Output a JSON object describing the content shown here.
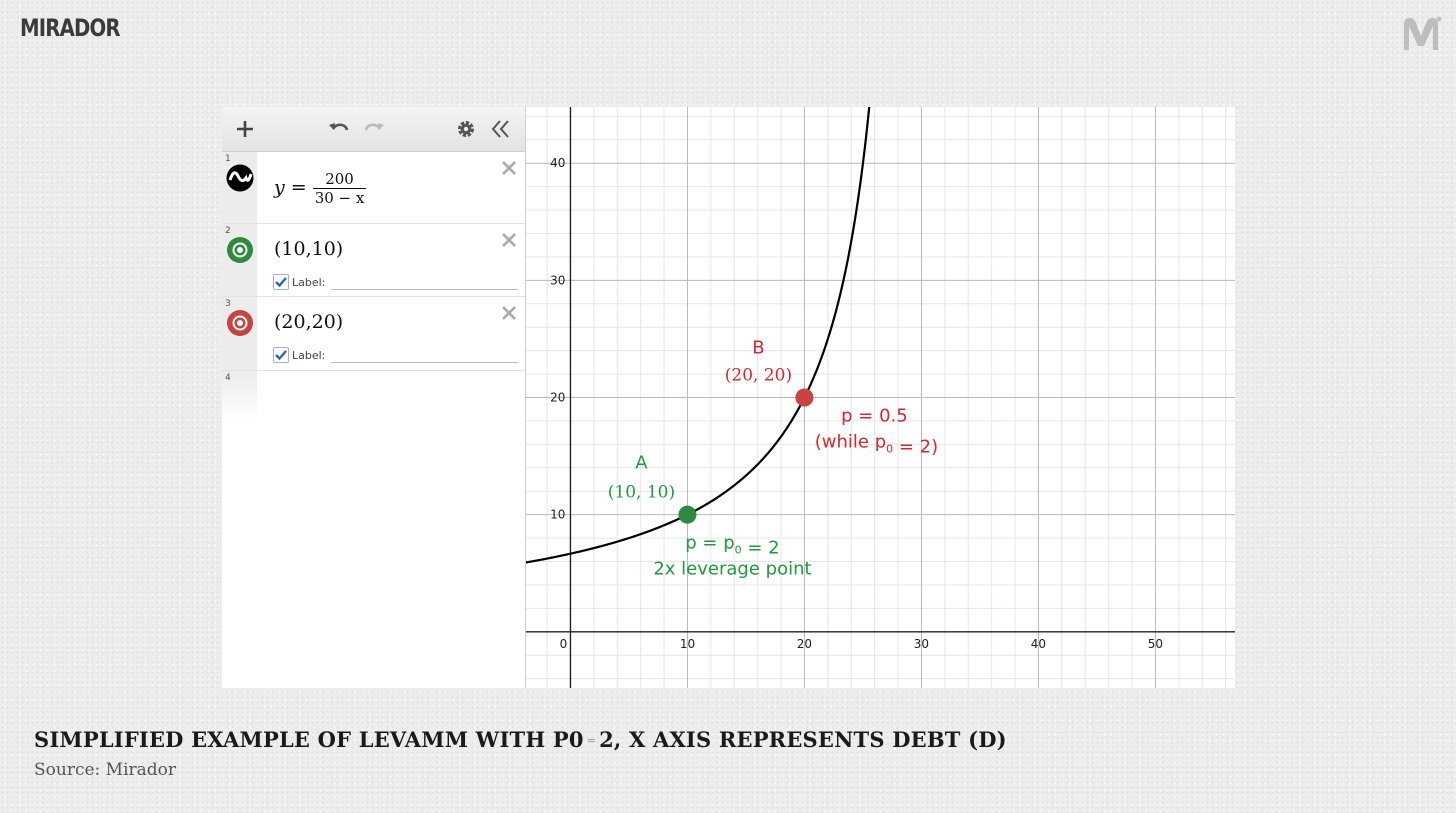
{
  "brand": {
    "name": "MIRADOR",
    "mark_icon": "mirador-monogram-icon"
  },
  "calculator": {
    "toolbar": {
      "add_icon": "plus-icon",
      "undo_icon": "undo-icon",
      "redo_icon": "redo-icon",
      "settings_icon": "gear-icon",
      "collapse_icon": "double-chevron-left-icon"
    },
    "expressions": [
      {
        "index": "1",
        "lhs": "y =",
        "numerator": "200",
        "denominator": "30 − x",
        "icon": "function-wave-icon"
      },
      {
        "index": "2",
        "text": "(10,10)",
        "label_text": "Label:",
        "label_checked": true,
        "color": "#2d8a3e",
        "icon": "green-point-icon"
      },
      {
        "index": "3",
        "text": "(20,20)",
        "label_text": "Label:",
        "label_checked": true,
        "color": "#c74440",
        "icon": "red-point-icon"
      },
      {
        "index": "4"
      }
    ]
  },
  "chart_data": {
    "type": "line",
    "title": "",
    "xlabel": "",
    "ylabel": "",
    "xlim": [
      -3.8,
      56.8
    ],
    "ylim": [
      -4.8,
      44.8
    ],
    "x_ticks": [
      0,
      10,
      20,
      30,
      40,
      50
    ],
    "y_ticks": [
      10,
      20,
      30,
      40
    ],
    "grid": true,
    "curve": {
      "equation": "y = 200 / (30 - x)",
      "color": "#000000"
    },
    "points": [
      {
        "x": 10,
        "y": 10,
        "color": "#2d8a3e",
        "name": "A",
        "coord_label": "(10, 10)",
        "note_lines": [
          "p = p0 = 2",
          "2x leverage point"
        ]
      },
      {
        "x": 20,
        "y": 20,
        "color": "#c74440",
        "name": "B",
        "coord_label": "(20, 20)",
        "note_lines": [
          "p = 0.5",
          "(while p0 = 2)"
        ]
      }
    ],
    "colors": {
      "green": "#1f9a3c",
      "red": "#d8262e"
    }
  },
  "caption": {
    "title_part1": "SIMPLIFIED EXAMPLE OF LEVAMM WITH P0",
    "title_eq": "=",
    "title_part2": "2, X AXIS REPRESENTS DEBT (D)",
    "source": "Source: Mirador"
  }
}
